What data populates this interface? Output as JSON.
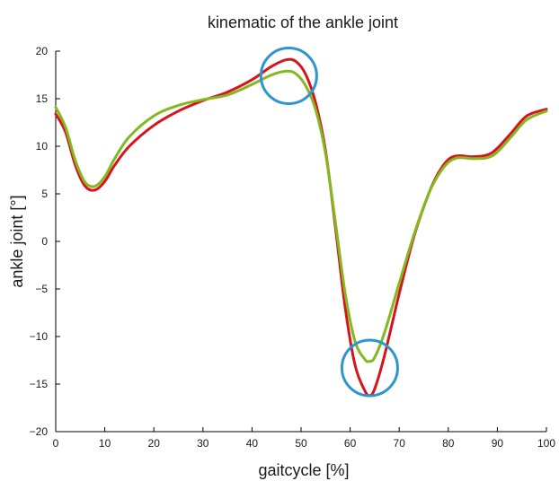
{
  "chart_data": {
    "type": "line",
    "title": "kinematic of the ankle joint",
    "xlabel": "gaitcycle [%]",
    "ylabel": "ankle joint [°]",
    "xlim": [
      0,
      100
    ],
    "ylim": [
      -20,
      20
    ],
    "xticks": [
      "0",
      "10",
      "20",
      "30",
      "40",
      "50",
      "60",
      "70",
      "80",
      "90",
      "100"
    ],
    "yticks": [
      "20",
      "15",
      "10",
      "5",
      "0",
      "−5",
      "−10",
      "−15",
      "−20"
    ],
    "grid": false,
    "series": [
      {
        "color": "#d7141e",
        "x": [
          0,
          2,
          4,
          6,
          8,
          10,
          12,
          15,
          20,
          25,
          30,
          35,
          40,
          44,
          47,
          49,
          51,
          53,
          55,
          57,
          59,
          61,
          63,
          64,
          65,
          67,
          70,
          73,
          76,
          78,
          80,
          82,
          85,
          88,
          90,
          93,
          96,
          100
        ],
        "y": [
          13.4,
          11.5,
          8.0,
          5.8,
          5.4,
          6.3,
          8.0,
          10.0,
          12.2,
          13.7,
          14.8,
          15.7,
          17.0,
          18.4,
          19.1,
          18.9,
          17.5,
          14.5,
          9.5,
          1.5,
          -7.0,
          -13.0,
          -15.7,
          -16.2,
          -15.5,
          -12.0,
          -5.5,
          0.5,
          5.0,
          7.2,
          8.6,
          9.0,
          8.9,
          9.1,
          9.8,
          11.5,
          13.2,
          13.9
        ]
      },
      {
        "color": "#82b91e",
        "x": [
          0,
          2,
          4,
          6,
          8,
          10,
          12,
          15,
          20,
          25,
          30,
          35,
          40,
          44,
          47,
          49,
          51,
          53,
          55,
          57,
          59,
          61,
          63,
          64,
          65,
          67,
          70,
          73,
          76,
          78,
          80,
          82,
          85,
          88,
          90,
          93,
          96,
          100
        ],
        "y": [
          14.1,
          12.0,
          8.5,
          6.2,
          5.8,
          6.8,
          8.7,
          11.0,
          13.2,
          14.3,
          14.9,
          15.4,
          16.5,
          17.5,
          17.9,
          17.6,
          16.3,
          13.8,
          9.2,
          2.0,
          -5.5,
          -10.5,
          -12.4,
          -12.6,
          -12.2,
          -9.6,
          -4.4,
          0.7,
          5.0,
          7.0,
          8.3,
          8.8,
          8.7,
          8.8,
          9.4,
          11.1,
          12.8,
          13.7
        ]
      }
    ],
    "annotations": [
      {
        "shape": "circle",
        "color": "#2d96cd",
        "x": 47.5,
        "y": 17.4
      },
      {
        "shape": "circle",
        "color": "#2d96cd",
        "x": 64.0,
        "y": -13.3
      }
    ]
  }
}
